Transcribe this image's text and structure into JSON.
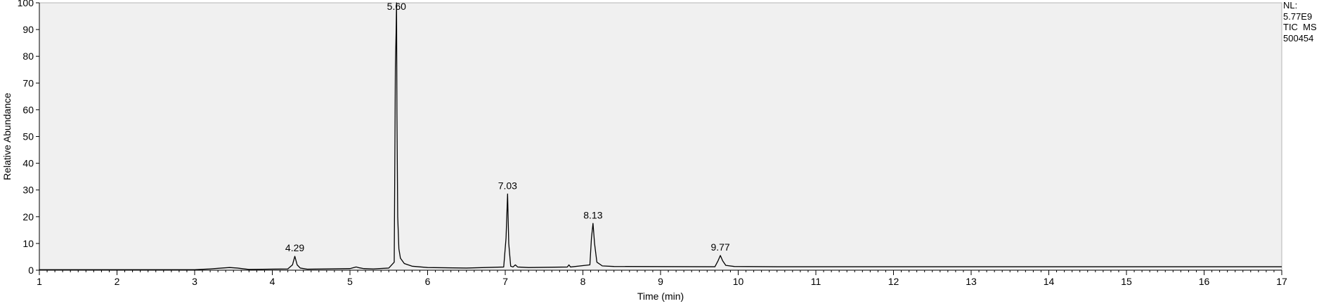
{
  "chart_data": {
    "type": "line",
    "xlabel": "Time (min)",
    "ylabel": "Relative Abundance",
    "xlim": [
      1,
      17
    ],
    "ylim": [
      0,
      100
    ],
    "x_ticks": [
      1,
      2,
      3,
      4,
      5,
      6,
      7,
      8,
      9,
      10,
      11,
      12,
      13,
      14,
      15,
      16,
      17
    ],
    "y_ticks": [
      0,
      10,
      20,
      30,
      40,
      50,
      60,
      70,
      80,
      90,
      100
    ],
    "grid": false,
    "line_color": "#000000",
    "plot_background": "#f0f0f0",
    "peaks": [
      {
        "label": "4.29",
        "x": 4.29,
        "y": 5.2
      },
      {
        "label": "5.60",
        "x": 5.6,
        "y": 100
      },
      {
        "label": "7.03",
        "x": 7.03,
        "y": 28.5
      },
      {
        "label": "8.13",
        "x": 8.13,
        "y": 17.5
      },
      {
        "label": "9.77",
        "x": 9.77,
        "y": 5.5
      }
    ],
    "series": [
      {
        "x": [
          1.0,
          3.0,
          3.2,
          3.35,
          3.45,
          3.55,
          3.7,
          4.2,
          4.26,
          4.29,
          4.32,
          4.36,
          4.45,
          5.0,
          5.08,
          5.12,
          5.18,
          5.3,
          5.5,
          5.57,
          5.585,
          5.595,
          5.6,
          5.605,
          5.615,
          5.63,
          5.65,
          5.7,
          5.8,
          6.0,
          6.5,
          6.98,
          7.01,
          7.03,
          7.045,
          7.07,
          7.1,
          7.13,
          7.16,
          7.3,
          7.8,
          7.82,
          7.84,
          8.09,
          8.11,
          8.13,
          8.15,
          8.18,
          8.25,
          8.4,
          9.7,
          9.74,
          9.77,
          9.8,
          9.84,
          9.95,
          10.5,
          17.0
        ],
        "y": [
          0.2,
          0.2,
          0.5,
          0.8,
          1.0,
          0.8,
          0.3,
          0.5,
          2.0,
          5.2,
          2.0,
          0.8,
          0.4,
          0.6,
          1.2,
          0.9,
          0.6,
          0.5,
          0.8,
          3.0,
          76.0,
          90.0,
          100.0,
          59.0,
          20.0,
          8.0,
          4.5,
          2.5,
          1.5,
          1.0,
          0.8,
          1.2,
          12.0,
          28.5,
          10.0,
          1.5,
          1.2,
          2.0,
          1.2,
          1.0,
          1.2,
          2.0,
          1.2,
          2.0,
          12.0,
          17.5,
          10.0,
          3.0,
          1.6,
          1.4,
          1.3,
          3.5,
          5.5,
          3.5,
          1.8,
          1.4,
          1.3,
          1.3
        ]
      }
    ]
  },
  "info": {
    "nl_label": "NL:",
    "nl_value": "5.77E9",
    "trace": "TIC  MS",
    "sample": "500454"
  }
}
